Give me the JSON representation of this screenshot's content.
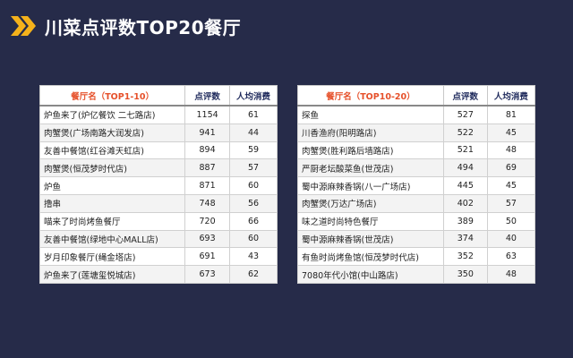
{
  "title": "川菜点评数TOP20餐厅",
  "chart_data": {
    "type": "table",
    "tables": [
      {
        "columns": [
          "餐厅名（TOP1-10）",
          "点评数",
          "人均消费"
        ],
        "rows": [
          [
            "炉鱼来了(炉亿餐饮 二七路店)",
            "1154",
            "61"
          ],
          [
            "肉蟹煲(广场南路大润发店)",
            "941",
            "44"
          ],
          [
            "友善中餐馆(红谷滩天虹店)",
            "894",
            "59"
          ],
          [
            "肉蟹煲(恒茂梦时代店)",
            "887",
            "57"
          ],
          [
            "炉鱼",
            "871",
            "60"
          ],
          [
            "撸串",
            "748",
            "56"
          ],
          [
            "喵来了时尚烤鱼餐厅",
            "720",
            "66"
          ],
          [
            "友善中餐馆(绿地中心MALL店)",
            "693",
            "60"
          ],
          [
            "岁月印象餐厅(绳金塔店)",
            "691",
            "43"
          ],
          [
            "炉鱼来了(莲塘玺悦城店)",
            "673",
            "62"
          ]
        ]
      },
      {
        "columns": [
          "餐厅名（TOP10-20）",
          "点评数",
          "人均消费"
        ],
        "rows": [
          [
            "探鱼",
            "527",
            "81"
          ],
          [
            "川香渔府(阳明路店)",
            "522",
            "45"
          ],
          [
            "肉蟹煲(胜利路后墙路店)",
            "521",
            "48"
          ],
          [
            "严厨老坛酸菜鱼(世茂店)",
            "494",
            "69"
          ],
          [
            "蜀中源麻辣香锅(八一广场店)",
            "445",
            "45"
          ],
          [
            "肉蟹煲(万达广场店)",
            "402",
            "57"
          ],
          [
            "味之道时尚特色餐厅",
            "389",
            "50"
          ],
          [
            "蜀中源麻辣香锅(世茂店)",
            "374",
            "40"
          ],
          [
            "有鱼时尚烤鱼馆(恒茂梦时代店)",
            "352",
            "63"
          ],
          [
            "7080年代小馆(中山路店)",
            "350",
            "48"
          ]
        ]
      }
    ]
  },
  "colors": {
    "background": "#262b49",
    "accent": "#f5b21b",
    "header_rank": "#e6502a"
  },
  "icons": {
    "header_marker": "double-chevron-icon"
  }
}
